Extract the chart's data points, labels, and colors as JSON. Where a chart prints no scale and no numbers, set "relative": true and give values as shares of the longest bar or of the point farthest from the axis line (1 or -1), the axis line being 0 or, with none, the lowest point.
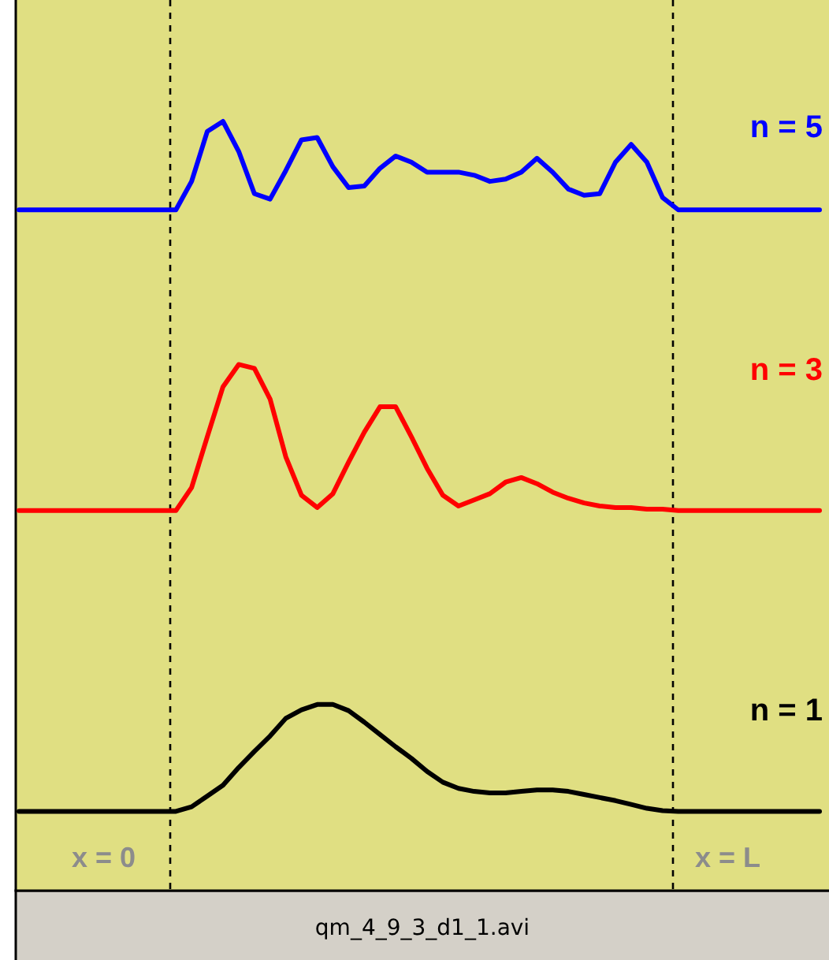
{
  "chart_data": {
    "type": "line",
    "relative": true,
    "tick_labels": false,
    "legend": false,
    "line_style": "solid",
    "marker": "none",
    "categories": [
      null,
      null,
      null,
      null,
      null,
      null,
      null,
      null,
      null,
      null,
      null,
      null,
      null,
      null,
      null,
      null,
      null,
      null,
      null,
      null,
      null,
      null,
      null,
      null,
      null,
      null,
      null,
      null,
      null,
      null,
      null,
      null,
      null,
      null,
      null,
      null,
      null,
      null,
      null,
      null,
      null,
      null,
      null,
      null,
      null,
      null,
      null,
      null,
      null,
      null,
      null,
      null
    ],
    "series": [
      {
        "name": "n = 5",
        "color": "#0000ff",
        "values": [
          0.885,
          0.885,
          0.885,
          0.885,
          0.885,
          0.885,
          0.885,
          0.885,
          0.885,
          0.885,
          0.885,
          0.922,
          0.987,
          1,
          0.961,
          0.906,
          0.899,
          0.936,
          0.976,
          0.979,
          0.941,
          0.914,
          0.916,
          0.939,
          0.955,
          0.947,
          0.934,
          0.934,
          0.934,
          0.93,
          0.922,
          0.925,
          0.934,
          0.952,
          0.934,
          0.912,
          0.904,
          0.906,
          0.947,
          0.97,
          0.947,
          0.901,
          0.885,
          0.885,
          0.885,
          0.885,
          0.885,
          0.885,
          0.885,
          0.885,
          0.885,
          0.885
        ]
      },
      {
        "name": "n = 3",
        "color": "#ff0000",
        "values": [
          0.494,
          0.494,
          0.494,
          0.494,
          0.494,
          0.494,
          0.494,
          0.494,
          0.494,
          0.494,
          0.494,
          0.524,
          0.59,
          0.655,
          0.684,
          0.679,
          0.639,
          0.564,
          0.514,
          0.498,
          0.516,
          0.557,
          0.596,
          0.629,
          0.629,
          0.59,
          0.549,
          0.514,
          0.5,
          0.508,
          0.516,
          0.531,
          0.537,
          0.529,
          0.518,
          0.51,
          0.504,
          0.5,
          0.498,
          0.498,
          0.496,
          0.496,
          0.494,
          0.494,
          0.494,
          0.494,
          0.494,
          0.494,
          0.494,
          0.494,
          0.494,
          0.494
        ]
      },
      {
        "name": "n = 1",
        "color": "#000000",
        "values": [
          0.103,
          0.103,
          0.103,
          0.103,
          0.103,
          0.103,
          0.103,
          0.103,
          0.103,
          0.103,
          0.103,
          0.109,
          0.123,
          0.137,
          0.16,
          0.181,
          0.201,
          0.224,
          0.235,
          0.242,
          0.242,
          0.234,
          0.219,
          0.203,
          0.187,
          0.172,
          0.155,
          0.141,
          0.133,
          0.129,
          0.127,
          0.127,
          0.129,
          0.131,
          0.131,
          0.129,
          0.125,
          0.121,
          0.117,
          0.112,
          0.107,
          0.104,
          0.103,
          0.103,
          0.103,
          0.103,
          0.103,
          0.103,
          0.103,
          0.103,
          0.103,
          0.103
        ]
      }
    ],
    "annotations": [
      "x = 0",
      "x = L",
      "qm_4_9_3_d1_1.avi"
    ]
  }
}
